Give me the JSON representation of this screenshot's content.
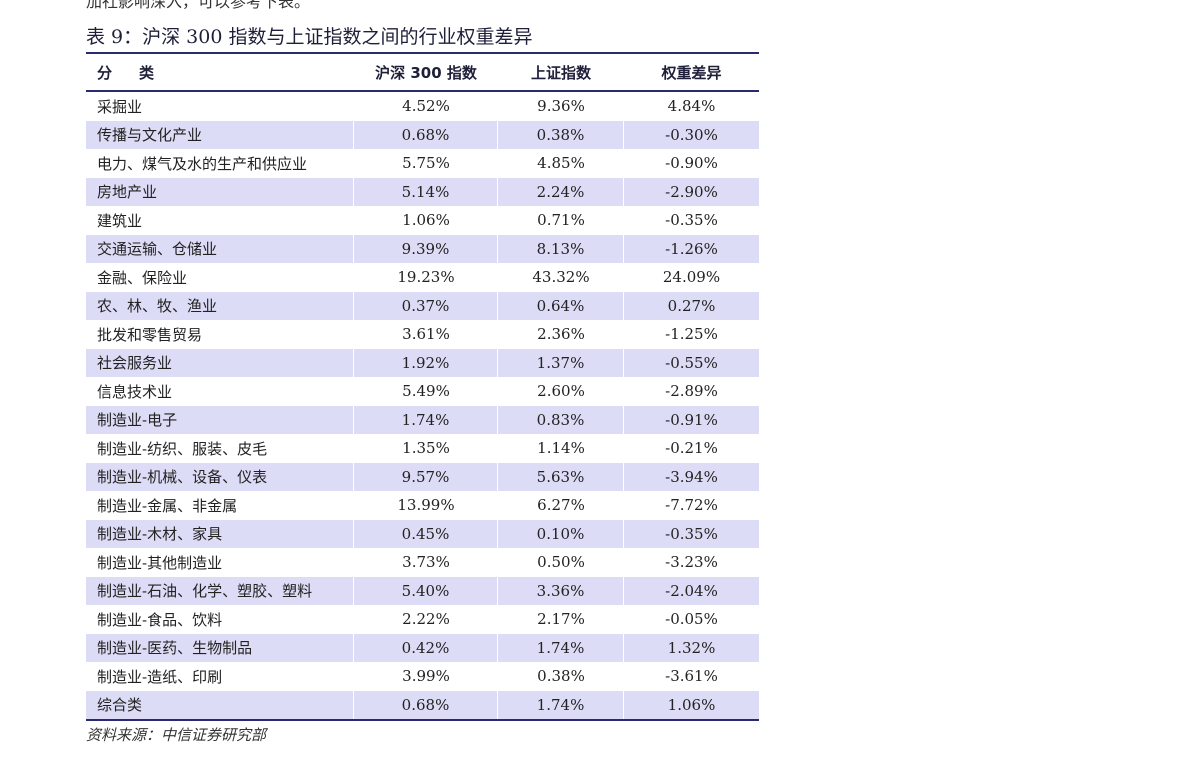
{
  "page": {
    "clipped_line": "加社影响深入，可以参考下表。",
    "table_title": "表 9：沪深 300 指数与上证指数之间的行业权重差异",
    "source": "资料来源：中信证券研究部"
  },
  "table": {
    "headers": [
      "分　类",
      "沪深 300 指数",
      "上证指数",
      "权重差异"
    ],
    "rows": [
      [
        "采掘业",
        "4.52%",
        "9.36%",
        "4.84%"
      ],
      [
        "传播与文化产业",
        "0.68%",
        "0.38%",
        "-0.30%"
      ],
      [
        "电力、煤气及水的生产和供应业",
        "5.75%",
        "4.85%",
        "-0.90%"
      ],
      [
        "房地产业",
        "5.14%",
        "2.24%",
        "-2.90%"
      ],
      [
        "建筑业",
        "1.06%",
        "0.71%",
        "-0.35%"
      ],
      [
        "交通运输、仓储业",
        "9.39%",
        "8.13%",
        "-1.26%"
      ],
      [
        "金融、保险业",
        "19.23%",
        "43.32%",
        "24.09%"
      ],
      [
        "农、林、牧、渔业",
        "0.37%",
        "0.64%",
        "0.27%"
      ],
      [
        "批发和零售贸易",
        "3.61%",
        "2.36%",
        "-1.25%"
      ],
      [
        "社会服务业",
        "1.92%",
        "1.37%",
        "-0.55%"
      ],
      [
        "信息技术业",
        "5.49%",
        "2.60%",
        "-2.89%"
      ],
      [
        "制造业-电子",
        "1.74%",
        "0.83%",
        "-0.91%"
      ],
      [
        "制造业-纺织、服装、皮毛",
        "1.35%",
        "1.14%",
        "-0.21%"
      ],
      [
        "制造业-机械、设备、仪表",
        "9.57%",
        "5.63%",
        "-3.94%"
      ],
      [
        "制造业-金属、非金属",
        "13.99%",
        "6.27%",
        "-7.72%"
      ],
      [
        "制造业-木材、家具",
        "0.45%",
        "0.10%",
        "-0.35%"
      ],
      [
        "制造业-其他制造业",
        "3.73%",
        "0.50%",
        "-3.23%"
      ],
      [
        "制造业-石油、化学、塑胶、塑料",
        "5.40%",
        "3.36%",
        "-2.04%"
      ],
      [
        "制造业-食品、饮料",
        "2.22%",
        "2.17%",
        "-0.05%"
      ],
      [
        "制造业-医药、生物制品",
        "0.42%",
        "1.74%",
        "1.32%"
      ],
      [
        "制造业-造纸、印刷",
        "3.99%",
        "0.38%",
        "-3.61%"
      ],
      [
        "综合类",
        "0.68%",
        "1.74%",
        "1.06%"
      ]
    ]
  },
  "colors": {
    "rule": "#2a2a6e",
    "shade": "#dcdcf6"
  }
}
